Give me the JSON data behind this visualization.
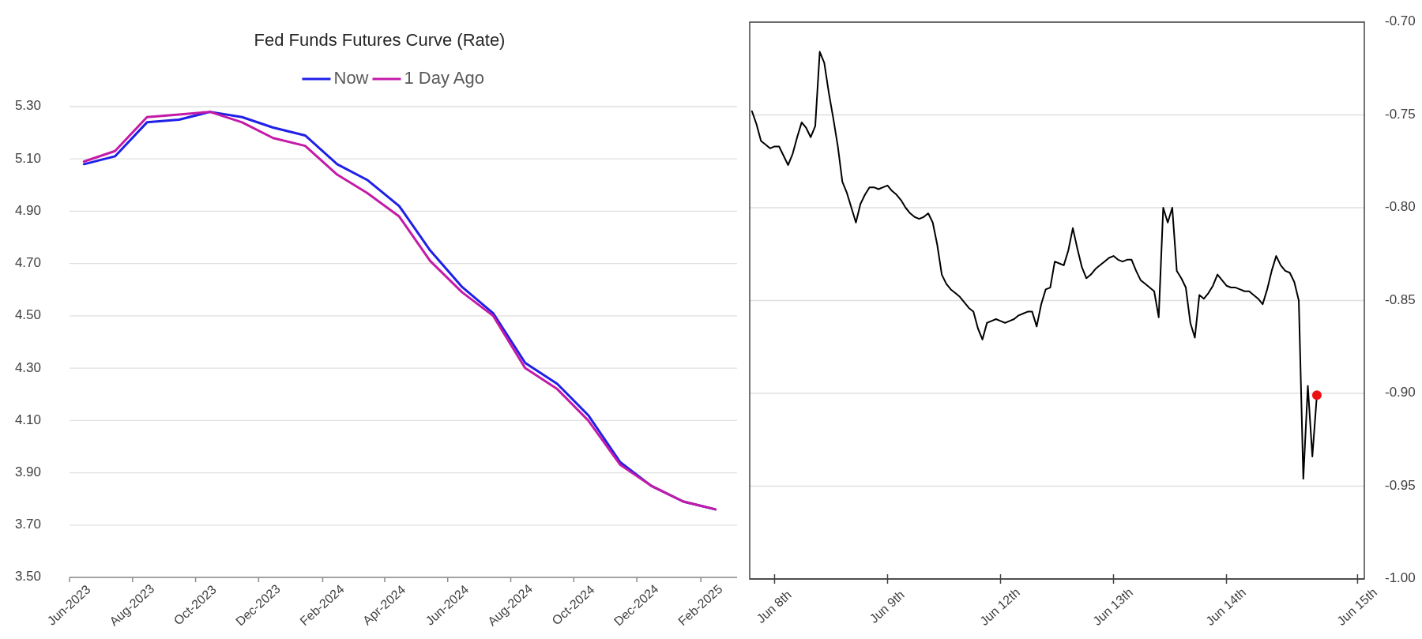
{
  "chart_data": [
    {
      "type": "line",
      "title": "Fed Funds Futures Curve (Rate)",
      "x": [
        "2023-06-15",
        "2023-07-15",
        "2023-08-15",
        "2023-09-15",
        "2023-10-15",
        "2023-11-15",
        "2023-12-15",
        "2024-01-15",
        "2024-02-15",
        "2024-03-15",
        "2024-04-15",
        "2024-05-15",
        "2024-06-15",
        "2024-07-15",
        "2024-08-15",
        "2024-09-15",
        "2024-10-15",
        "2024-11-15",
        "2024-12-15",
        "2025-01-15",
        "2025-02-15"
      ],
      "series": [
        {
          "name": "Now",
          "color": "#1f1fe8",
          "values": [
            5.08,
            5.11,
            5.24,
            5.25,
            5.28,
            5.26,
            5.22,
            5.19,
            5.08,
            5.02,
            4.92,
            4.75,
            4.61,
            4.51,
            4.32,
            4.24,
            4.12,
            3.94,
            3.85,
            3.79,
            3.76
          ]
        },
        {
          "name": "1 Day Ago",
          "color": "#c41aa8",
          "values": [
            5.09,
            5.13,
            5.26,
            5.27,
            5.28,
            5.24,
            5.18,
            5.15,
            5.04,
            4.97,
            4.88,
            4.71,
            4.59,
            4.5,
            4.3,
            4.22,
            4.1,
            3.93,
            3.85,
            3.79,
            3.76
          ]
        }
      ],
      "xlim": [
        "2023-06-01",
        "2025-03-08"
      ],
      "xticks": [
        {
          "value": "2023-06",
          "label": "Jun-2023"
        },
        {
          "value": "2023-08",
          "label": "Aug-2023"
        },
        {
          "value": "2023-10",
          "label": "Oct-2023"
        },
        {
          "value": "2023-12",
          "label": "Dec-2023"
        },
        {
          "value": "2024-02",
          "label": "Feb-2024"
        },
        {
          "value": "2024-04",
          "label": "Apr-2024"
        },
        {
          "value": "2024-06",
          "label": "Jun-2024"
        },
        {
          "value": "2024-08",
          "label": "Aug-2024"
        },
        {
          "value": "2024-10",
          "label": "Oct-2024"
        },
        {
          "value": "2024-12",
          "label": "Dec-2024"
        },
        {
          "value": "2025-02",
          "label": "Feb-2025"
        }
      ],
      "ylim": [
        3.5,
        5.3
      ],
      "yticks": [
        {
          "value": 3.5,
          "label": "3.50"
        },
        {
          "value": 3.7,
          "label": "3.70"
        },
        {
          "value": 3.9,
          "label": "3.90"
        },
        {
          "value": 4.1,
          "label": "4.10"
        },
        {
          "value": 4.3,
          "label": "4.30"
        },
        {
          "value": 4.5,
          "label": "4.50"
        },
        {
          "value": 4.7,
          "label": "4.70"
        },
        {
          "value": 4.9,
          "label": "4.90"
        },
        {
          "value": 5.1,
          "label": "5.10"
        },
        {
          "value": 5.3,
          "label": "5.30"
        }
      ],
      "grid": "y",
      "legend": "top"
    },
    {
      "type": "line",
      "categories": [
        null,
        null,
        null,
        null,
        null,
        "Jun 8th",
        null,
        null,
        null,
        null,
        null,
        null,
        null,
        null,
        null,
        null,
        null,
        null,
        null,
        null,
        null,
        null,
        null,
        null,
        null,
        null,
        null,
        null,
        null,
        null,
        "Jun 9th",
        null,
        null,
        null,
        null,
        null,
        null,
        null,
        null,
        null,
        null,
        null,
        null,
        null,
        null,
        null,
        null,
        null,
        null,
        null,
        null,
        null,
        null,
        null,
        null,
        "Jun 12th",
        null,
        null,
        null,
        null,
        null,
        null,
        null,
        null,
        null,
        null,
        null,
        null,
        null,
        null,
        null,
        null,
        null,
        null,
        null,
        null,
        null,
        null,
        null,
        null,
        "Jun 13th",
        null,
        null,
        null,
        null,
        null,
        null,
        null,
        null,
        null,
        null,
        null,
        null,
        null,
        null,
        null,
        null,
        null,
        null,
        null,
        null,
        null,
        null,
        null,
        null,
        "Jun 14th",
        null,
        null,
        null,
        null,
        null,
        null,
        null,
        null,
        null,
        null,
        null,
        null,
        null,
        null,
        null,
        null,
        null,
        null,
        null,
        null,
        null,
        null,
        null,
        null,
        null,
        null,
        null,
        null,
        "Jun 15th",
        null
      ],
      "series": [
        {
          "color": "#000000",
          "values": [
            -0.748,
            -0.755,
            -0.764,
            -0.766,
            -0.768,
            -0.767,
            -0.767,
            -0.772,
            -0.777,
            -0.771,
            -0.762,
            -0.754,
            -0.757,
            -0.762,
            -0.756,
            -0.716,
            -0.722,
            -0.738,
            -0.752,
            -0.767,
            -0.786,
            -0.792,
            -0.8,
            -0.808,
            -0.798,
            -0.793,
            -0.789,
            -0.789,
            -0.79,
            -0.789,
            -0.788,
            -0.791,
            -0.793,
            -0.796,
            -0.8,
            -0.803,
            -0.805,
            -0.806,
            -0.805,
            -0.803,
            -0.808,
            -0.82,
            -0.836,
            -0.841,
            -0.844,
            -0.846,
            -0.848,
            -0.851,
            -0.854,
            -0.856,
            -0.865,
            -0.871,
            -0.862,
            -0.861,
            -0.86,
            -0.861,
            -0.862,
            -0.861,
            -0.86,
            -0.858,
            -0.857,
            -0.856,
            -0.856,
            -0.864,
            -0.852,
            -0.844,
            -0.843,
            -0.829,
            -0.83,
            -0.831,
            -0.823,
            -0.811,
            -0.822,
            -0.832,
            -0.838,
            -0.836,
            -0.833,
            -0.831,
            -0.829,
            -0.827,
            -0.826,
            -0.828,
            -0.829,
            -0.828,
            -0.828,
            -0.834,
            -0.839,
            -0.841,
            -0.843,
            -0.845,
            -0.859,
            -0.8,
            -0.808,
            -0.8,
            -0.834,
            -0.838,
            -0.843,
            -0.862,
            -0.87,
            -0.847,
            -0.849,
            -0.846,
            -0.842,
            -0.836,
            -0.839,
            -0.842,
            -0.843,
            -0.843,
            -0.844,
            -0.845,
            -0.845,
            -0.847,
            -0.849,
            -0.852,
            -0.844,
            -0.834,
            -0.826,
            -0.831,
            -0.834,
            -0.835,
            -0.84,
            -0.85,
            -0.946,
            -0.896,
            -0.934,
            -0.901,
            null,
            null,
            null,
            null,
            null,
            null,
            null,
            null,
            null,
            null
          ]
        },
        {
          "type": "scatter",
          "color": "#ee1111",
          "values": [
            null,
            null,
            null,
            null,
            null,
            null,
            null,
            null,
            null,
            null,
            null,
            null,
            null,
            null,
            null,
            null,
            null,
            null,
            null,
            null,
            null,
            null,
            null,
            null,
            null,
            null,
            null,
            null,
            null,
            null,
            null,
            null,
            null,
            null,
            null,
            null,
            null,
            null,
            null,
            null,
            null,
            null,
            null,
            null,
            null,
            null,
            null,
            null,
            null,
            null,
            null,
            null,
            null,
            null,
            null,
            null,
            null,
            null,
            null,
            null,
            null,
            null,
            null,
            null,
            null,
            null,
            null,
            null,
            null,
            null,
            null,
            null,
            null,
            null,
            null,
            null,
            null,
            null,
            null,
            null,
            null,
            null,
            null,
            null,
            null,
            null,
            null,
            null,
            null,
            null,
            null,
            null,
            null,
            null,
            null,
            null,
            null,
            null,
            null,
            null,
            null,
            null,
            null,
            null,
            null,
            null,
            null,
            null,
            null,
            null,
            null,
            null,
            null,
            null,
            null,
            null,
            null,
            null,
            null,
            null,
            null,
            null,
            null,
            null,
            null,
            -0.901,
            null,
            null,
            null,
            null,
            null,
            null,
            null,
            null,
            null,
            null
          ]
        }
      ],
      "ylim": [
        -1.0,
        -0.7
      ],
      "yticks": [
        {
          "value": -1.0,
          "label": "-1.00"
        },
        {
          "value": -0.95,
          "label": "-0.95"
        },
        {
          "value": -0.9,
          "label": "-0.90"
        },
        {
          "value": -0.85,
          "label": "-0.85"
        },
        {
          "value": -0.8,
          "label": "-0.80"
        },
        {
          "value": -0.75,
          "label": "-0.75"
        },
        {
          "value": -0.7,
          "label": "-0.70"
        }
      ],
      "grid": "y"
    }
  ]
}
